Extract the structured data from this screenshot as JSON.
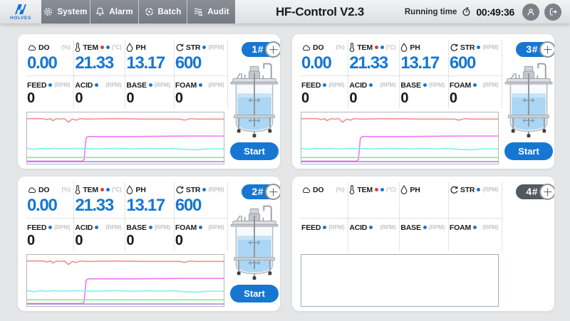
{
  "topbar": {
    "logo": {
      "brand": "HOLVES"
    },
    "tabs": [
      {
        "label": "System",
        "icon": "gear-icon"
      },
      {
        "label": "Alarm",
        "icon": "bell-icon"
      },
      {
        "label": "Batch",
        "icon": "target-icon"
      },
      {
        "label": "Audit",
        "icon": "audit-search-icon"
      }
    ],
    "title": "HF-Control V2.3",
    "running_time": {
      "label": "Running time",
      "value": "00:49:36"
    }
  },
  "metrics": {
    "do": {
      "label": "DO",
      "unit": "(%)"
    },
    "tem": {
      "label": "TEM",
      "unit": "(°C)"
    },
    "ph": {
      "label": "PH",
      "unit": ""
    },
    "str": {
      "label": "STR",
      "unit": "(RPM)"
    },
    "feed": {
      "label": "FEED",
      "unit": "(RPM)"
    },
    "acid": {
      "label": "ACID",
      "unit": "(RPM)"
    },
    "base": {
      "label": "BASE",
      "unit": "(RPM)"
    },
    "foam": {
      "label": "FOAM",
      "unit": "(RPM)"
    }
  },
  "panels": [
    {
      "badge": "1#",
      "active": true,
      "start_label": "Start",
      "values": {
        "do": "0.00",
        "tem": "21.33",
        "ph": "13.17",
        "str": "600",
        "feed": "0",
        "acid": "0",
        "base": "0",
        "foam": "0"
      }
    },
    {
      "badge": "3#",
      "active": true,
      "start_label": "Start",
      "values": {
        "do": "0.00",
        "tem": "21.33",
        "ph": "13.17",
        "str": "600",
        "feed": "0",
        "acid": "0",
        "base": "0",
        "foam": "0"
      }
    },
    {
      "badge": "2#",
      "active": true,
      "start_label": "Start",
      "values": {
        "do": "0.00",
        "tem": "21.33",
        "ph": "13.17",
        "str": "600",
        "feed": "0",
        "acid": "0",
        "base": "0",
        "foam": "0"
      }
    },
    {
      "badge": "4#",
      "active": false,
      "start_label": "",
      "values": {
        "do": "",
        "tem": "",
        "ph": "",
        "str": "",
        "feed": "",
        "acid": "",
        "base": "",
        "foam": ""
      }
    }
  ],
  "chart_data": {
    "type": "line",
    "title": "",
    "xlabel": "",
    "ylabel": "",
    "axes_visible": false,
    "grid": false,
    "legend": "none",
    "note": "Identical trend strip repeated on panels 1#, 3#, 2#; panel 4# chart is empty. Coordinates are percent of plot box: x 0-100 left-to-right, y 0-100 top-to-bottom.",
    "applies_to_panels": [
      "1#",
      "3#",
      "2#"
    ],
    "series": [
      {
        "name": "red-line",
        "color": "#f58e8e",
        "points": [
          [
            0,
            12
          ],
          [
            8,
            12
          ],
          [
            10,
            14
          ],
          [
            12,
            12
          ],
          [
            13,
            16
          ],
          [
            15,
            12
          ],
          [
            17,
            13
          ],
          [
            19,
            12
          ],
          [
            21,
            19
          ],
          [
            23,
            13
          ],
          [
            25,
            15
          ],
          [
            27,
            12
          ],
          [
            30,
            13
          ],
          [
            45,
            12
          ],
          [
            60,
            13
          ],
          [
            78,
            13
          ],
          [
            80,
            15
          ],
          [
            83,
            12
          ],
          [
            86,
            13
          ],
          [
            100,
            13
          ]
        ]
      },
      {
        "name": "magenta-line",
        "color": "#f07af0",
        "points": [
          [
            0,
            95
          ],
          [
            28,
            95
          ],
          [
            29,
            92
          ],
          [
            30,
            50
          ],
          [
            31,
            47
          ],
          [
            55,
            47
          ],
          [
            80,
            46
          ],
          [
            100,
            46
          ]
        ]
      },
      {
        "name": "cyan-line",
        "color": "#7df0ee",
        "points": [
          [
            0,
            70
          ],
          [
            4,
            72
          ],
          [
            7,
            70
          ],
          [
            10,
            71
          ],
          [
            14,
            70
          ],
          [
            18,
            71
          ],
          [
            25,
            70
          ],
          [
            35,
            71
          ],
          [
            45,
            70
          ],
          [
            55,
            71
          ],
          [
            62,
            70
          ],
          [
            68,
            71
          ],
          [
            74,
            70
          ],
          [
            80,
            72
          ],
          [
            86,
            73
          ],
          [
            92,
            71
          ],
          [
            100,
            71
          ]
        ]
      },
      {
        "name": "green-line",
        "color": "#8ce98c",
        "points": [
          [
            0,
            88
          ],
          [
            100,
            88
          ]
        ]
      },
      {
        "name": "purple-line",
        "color": "#9b84d6",
        "points": [
          [
            0,
            96
          ],
          [
            100,
            96
          ]
        ]
      }
    ]
  }
}
